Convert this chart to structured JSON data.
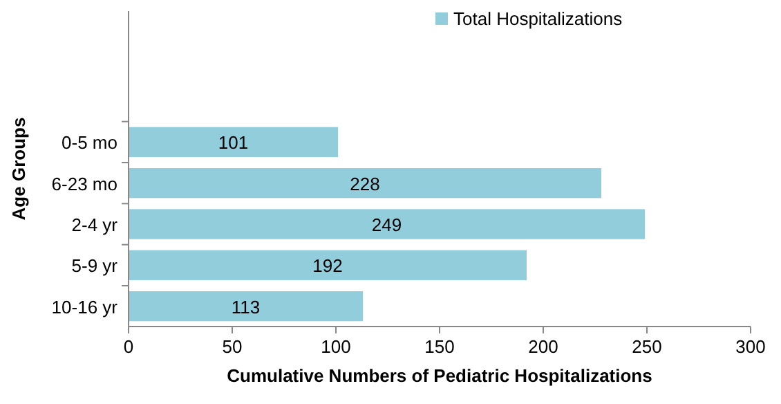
{
  "chart_data": {
    "type": "bar",
    "orientation": "horizontal",
    "xlabel": "Cumulative Numbers of Pediatric Hospitalizations",
    "ylabel": "Age Groups",
    "categories": [
      "0-5 mo",
      "6-23 mo",
      "2-4 yr",
      "5-9 yr",
      "10-16 yr"
    ],
    "series": [
      {
        "name": "Total Hospitalizations",
        "color": "#92cddc",
        "values": [
          101,
          228,
          249,
          192,
          113
        ]
      }
    ],
    "xlim": [
      0,
      300
    ],
    "xticks": [
      0,
      50,
      100,
      150,
      200,
      250,
      300
    ],
    "data_labels": true,
    "legend": "top right",
    "grid": false
  }
}
